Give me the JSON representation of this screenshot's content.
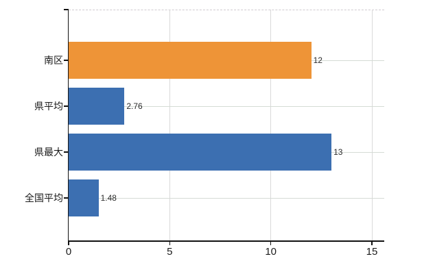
{
  "chart_data": {
    "type": "bar",
    "orientation": "horizontal",
    "categories": [
      "南区",
      "県平均",
      "県最大",
      "全国平均"
    ],
    "values": [
      12,
      2.76,
      13,
      1.48
    ],
    "value_labels": [
      "12",
      "2.76",
      "13",
      "1.48"
    ],
    "bar_colors": [
      "#ee9437",
      "#3c6fb1",
      "#3c6fb1",
      "#3c6fb1"
    ],
    "x_axis": {
      "ticks": [
        0,
        5,
        10,
        15
      ],
      "tick_labels": [
        "0",
        "5",
        "10",
        "15"
      ],
      "range": [
        0,
        15.6
      ]
    },
    "grid": {
      "vertical": true,
      "horizontal": true
    },
    "legend": false
  },
  "style": {
    "background": "#ffffff",
    "highlight_bar_color": "#ee9437",
    "default_bar_color": "#3c6fb1",
    "axis_color": "#111111",
    "vertical_grid_color": "#d9d9d9",
    "horizontal_grid_color": "#d5dbd5",
    "top_border_color": "#cfc9cf",
    "text_color": "#1a1a1a"
  }
}
